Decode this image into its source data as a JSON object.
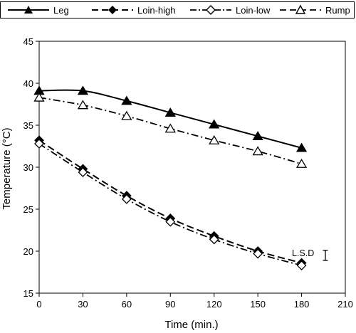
{
  "chart_data": {
    "type": "line",
    "xlabel": "Time (min.)",
    "ylabel": "Temperature (°C)",
    "xlim": [
      0,
      210
    ],
    "ylim": [
      15,
      45
    ],
    "xticks": [
      0,
      30,
      60,
      90,
      120,
      150,
      180,
      210
    ],
    "yticks": [
      15,
      20,
      25,
      30,
      35,
      40,
      45
    ],
    "x": [
      0,
      30,
      60,
      90,
      120,
      150,
      180
    ],
    "grid": false,
    "legend_position": "top",
    "series": [
      {
        "name": "Leg",
        "values": [
          39.1,
          39.1,
          37.9,
          36.5,
          35.1,
          33.7,
          32.3
        ],
        "marker": "filled-triangle",
        "line": "solid"
      },
      {
        "name": "Loin-high",
        "values": [
          33.2,
          29.8,
          26.6,
          23.9,
          21.8,
          20.0,
          18.6
        ],
        "marker": "filled-diamond",
        "line": "dashed"
      },
      {
        "name": "Loin-low",
        "values": [
          32.8,
          29.4,
          26.2,
          23.5,
          21.4,
          19.7,
          18.3
        ],
        "marker": "open-diamond",
        "line": "dash-dot"
      },
      {
        "name": "Rump",
        "values": [
          38.3,
          37.4,
          36.1,
          34.6,
          33.2,
          31.9,
          30.4
        ],
        "marker": "open-triangle",
        "line": "dash-dot"
      }
    ],
    "annotation": {
      "text": "L.S.D",
      "x": 180,
      "y": 19.5,
      "bar_low": 18.9,
      "bar_high": 20.1
    }
  },
  "colors": {
    "line": "#000000",
    "background": "#ffffff"
  }
}
